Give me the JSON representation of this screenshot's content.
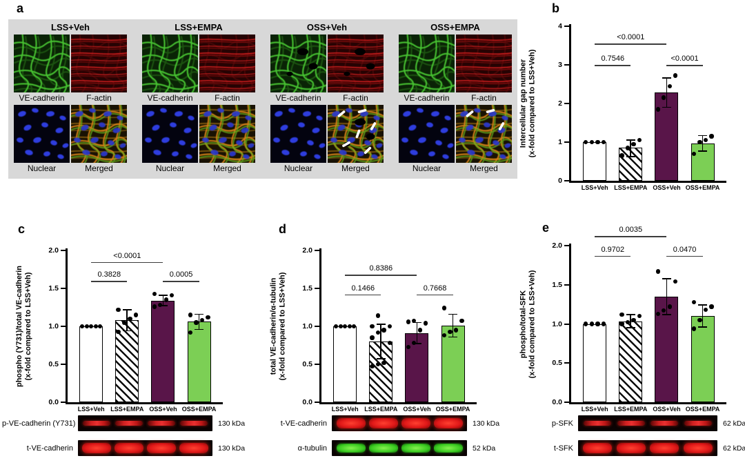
{
  "colors": {
    "bar_purple": "#591549",
    "bar_green": "#7ccf55",
    "panel_a_bg": "#d8d8d8",
    "axis": "#000000",
    "band_red": "#e02020",
    "band_green": "#3ecb22",
    "nuclei_blue": "#2e3ede",
    "ve_green": "#46c230",
    "factin_red": "#cf1f1f"
  },
  "panel_labels": {
    "a": "a",
    "b": "b",
    "c": "c",
    "d": "d",
    "e": "e"
  },
  "panel_a": {
    "label": "a",
    "channel_labels_row1": [
      "VE-cadherin",
      "F-actin"
    ],
    "channel_labels_row2": [
      "Nuclear",
      "Merged"
    ],
    "groups": [
      {
        "title": "LSS+Veh",
        "gaps": false,
        "arrow_count": 0
      },
      {
        "title": "LSS+EMPA",
        "gaps": false,
        "arrow_count": 0
      },
      {
        "title": "OSS+Veh",
        "gaps": true,
        "arrow_count": 6
      },
      {
        "title": "OSS+EMPA",
        "gaps": false,
        "arrow_count": 3
      }
    ]
  },
  "chart_data": [
    {
      "panel": "b",
      "type": "bar",
      "title": "",
      "categories": [
        "LSS+Veh",
        "LSS+EMPA",
        "OSS+Veh",
        "OSS+EMPA"
      ],
      "values": [
        1.0,
        0.85,
        2.28,
        0.97
      ],
      "err_hi": [
        null,
        1.05,
        2.66,
        1.17
      ],
      "err_lo": [
        null,
        0.63,
        1.9,
        0.77
      ],
      "points": [
        [
          1.0,
          1.0,
          1.0,
          1.0
        ],
        [
          0.65,
          0.85,
          0.95,
          1.05
        ],
        [
          1.85,
          2.15,
          2.45,
          2.72
        ],
        [
          0.7,
          1.0,
          1.05,
          1.15
        ]
      ],
      "bar_styles": [
        "white",
        "hatch",
        "purple",
        "green"
      ],
      "ylim": [
        0,
        4
      ],
      "yticks": [
        0,
        1,
        2,
        3,
        4
      ],
      "ytick_labels": [
        "0",
        "1",
        "2",
        "3",
        "4"
      ],
      "ylabel": [
        "Intercellular gap number",
        "(x-fold compared to LSS+Veh)"
      ],
      "xlabel": "",
      "grid": false,
      "brackets": [
        {
          "from": 0,
          "to": 2,
          "label": "<0.0001",
          "y": 3.55
        },
        {
          "from": 0,
          "to": 1,
          "label": "0.7546",
          "y": 3.0
        },
        {
          "from": 2,
          "to": 3,
          "label": "<0.0001",
          "y": 3.0
        }
      ]
    },
    {
      "panel": "c",
      "type": "bar",
      "title": "",
      "categories": [
        "LSS+Veh",
        "LSS+EMPA",
        "OSS+Veh",
        "OSS+EMPA"
      ],
      "values": [
        1.0,
        1.08,
        1.34,
        1.06
      ],
      "err_hi": [
        null,
        1.22,
        1.41,
        1.16
      ],
      "err_lo": [
        null,
        0.94,
        1.27,
        0.96
      ],
      "points": [
        [
          1.0,
          1.0,
          1.0,
          1.0,
          1.0
        ],
        [
          0.93,
          1.05,
          1.1,
          1.15,
          1.22
        ],
        [
          1.26,
          1.28,
          1.35,
          1.41,
          1.43
        ],
        [
          0.92,
          1.05,
          1.08,
          1.12,
          1.15
        ]
      ],
      "bar_styles": [
        "white",
        "hatch",
        "purple",
        "green"
      ],
      "ylim": [
        0,
        2
      ],
      "yticks": [
        0,
        0.5,
        1.0,
        1.5,
        2.0
      ],
      "ytick_labels": [
        "0.0",
        "0.5",
        "1.0",
        "1.5",
        "2.0"
      ],
      "ylabel": [
        "phospho (Y731)/total VE-cadherin",
        "(x-fold compared to LSS+Veh)"
      ],
      "xlabel": "",
      "grid": false,
      "brackets": [
        {
          "from": 0,
          "to": 2,
          "label": "<0.0001",
          "y": 1.85
        },
        {
          "from": 0,
          "to": 1,
          "label": "0.3828",
          "y": 1.6
        },
        {
          "from": 2,
          "to": 3,
          "label": "0.0005",
          "y": 1.6
        }
      ]
    },
    {
      "panel": "d",
      "type": "bar",
      "title": "",
      "categories": [
        "LSS+Veh",
        "LSS+EMPA",
        "OSS+Veh",
        "OSS+EMPA"
      ],
      "values": [
        1.0,
        0.8,
        0.91,
        1.01
      ],
      "err_hi": [
        null,
        1.03,
        1.05,
        1.16
      ],
      "err_lo": [
        null,
        0.57,
        0.77,
        0.86
      ],
      "points": [
        [
          1.0,
          1.0,
          1.0,
          1.0,
          1.0
        ],
        [
          0.47,
          0.5,
          0.52,
          0.78,
          0.85,
          0.92,
          0.95,
          1.0,
          1.0,
          1.14
        ],
        [
          0.73,
          0.78,
          0.95,
          1.04,
          1.06,
          1.07
        ],
        [
          0.88,
          0.93,
          0.95,
          1.07,
          1.24
        ]
      ],
      "bar_styles": [
        "white",
        "hatch",
        "purple",
        "green"
      ],
      "ylim": [
        0,
        2
      ],
      "yticks": [
        0,
        0.5,
        1.0,
        1.5,
        2.0
      ],
      "ytick_labels": [
        "0.0",
        "0.5",
        "1.0",
        "1.5",
        "2.0"
      ],
      "ylabel": [
        "total VE-cadherin/α-tubulin",
        "(x-fold compared to LSS+Veh)"
      ],
      "xlabel": "",
      "grid": false,
      "brackets": [
        {
          "from": 0,
          "to": 2,
          "label": "0.8386",
          "y": 1.68
        },
        {
          "from": 0,
          "to": 1,
          "label": "0.1466",
          "y": 1.42
        },
        {
          "from": 2,
          "to": 3,
          "label": "0.7668",
          "y": 1.42
        }
      ]
    },
    {
      "panel": "e",
      "type": "bar",
      "title": "",
      "categories": [
        "LSS+Veh",
        "LSS+EMPA",
        "OSS+Veh",
        "OSS+EMPA"
      ],
      "values": [
        1.0,
        1.03,
        1.35,
        1.1
      ],
      "err_hi": [
        null,
        1.12,
        1.58,
        1.24
      ],
      "err_lo": [
        null,
        0.95,
        1.12,
        0.96
      ],
      "points": [
        [
          1.0,
          1.0,
          1.0,
          1.0
        ],
        [
          1.0,
          1.02,
          1.05,
          1.1,
          1.12
        ],
        [
          1.13,
          1.17,
          1.22,
          1.54,
          1.67
        ],
        [
          0.94,
          1.05,
          1.18,
          1.22,
          1.28
        ]
      ],
      "bar_styles": [
        "white",
        "hatch",
        "purple",
        "green"
      ],
      "ylim": [
        0,
        2
      ],
      "yticks": [
        0,
        0.5,
        1.0,
        1.5,
        2.0
      ],
      "ytick_labels": [
        "0.0",
        "0.5",
        "1.0",
        "1.5",
        "2.0"
      ],
      "ylabel": [
        "phospho/total-SFK",
        "(x-fold compared to LSS+Veh)"
      ],
      "xlabel": "",
      "grid": false,
      "brackets": [
        {
          "from": 0,
          "to": 2,
          "label": "0.0035",
          "y": 2.12
        },
        {
          "from": 0,
          "to": 1,
          "label": "0.9702",
          "y": 1.87
        },
        {
          "from": 2,
          "to": 3,
          "label": "0.0470",
          "y": 1.87
        }
      ]
    }
  ],
  "blots": {
    "c": [
      {
        "label": "p-VE-cadherin (Y731)",
        "kda": "130 kDa",
        "band": "red-thin"
      },
      {
        "label": "t-VE-cadherin",
        "kda": "130 kDa",
        "band": "red-thick"
      }
    ],
    "d": [
      {
        "label": "t-VE-cadherin",
        "kda": "130 kDa",
        "band": "red-thick"
      },
      {
        "label": "α-tubulin",
        "kda": "52 kDa",
        "band": "green-thick"
      }
    ],
    "e": [
      {
        "label": "p-SFK",
        "kda": "62 kDa",
        "band": "red-thin"
      },
      {
        "label": "t-SFK",
        "kda": "62 kDa",
        "band": "red-thick"
      }
    ]
  }
}
